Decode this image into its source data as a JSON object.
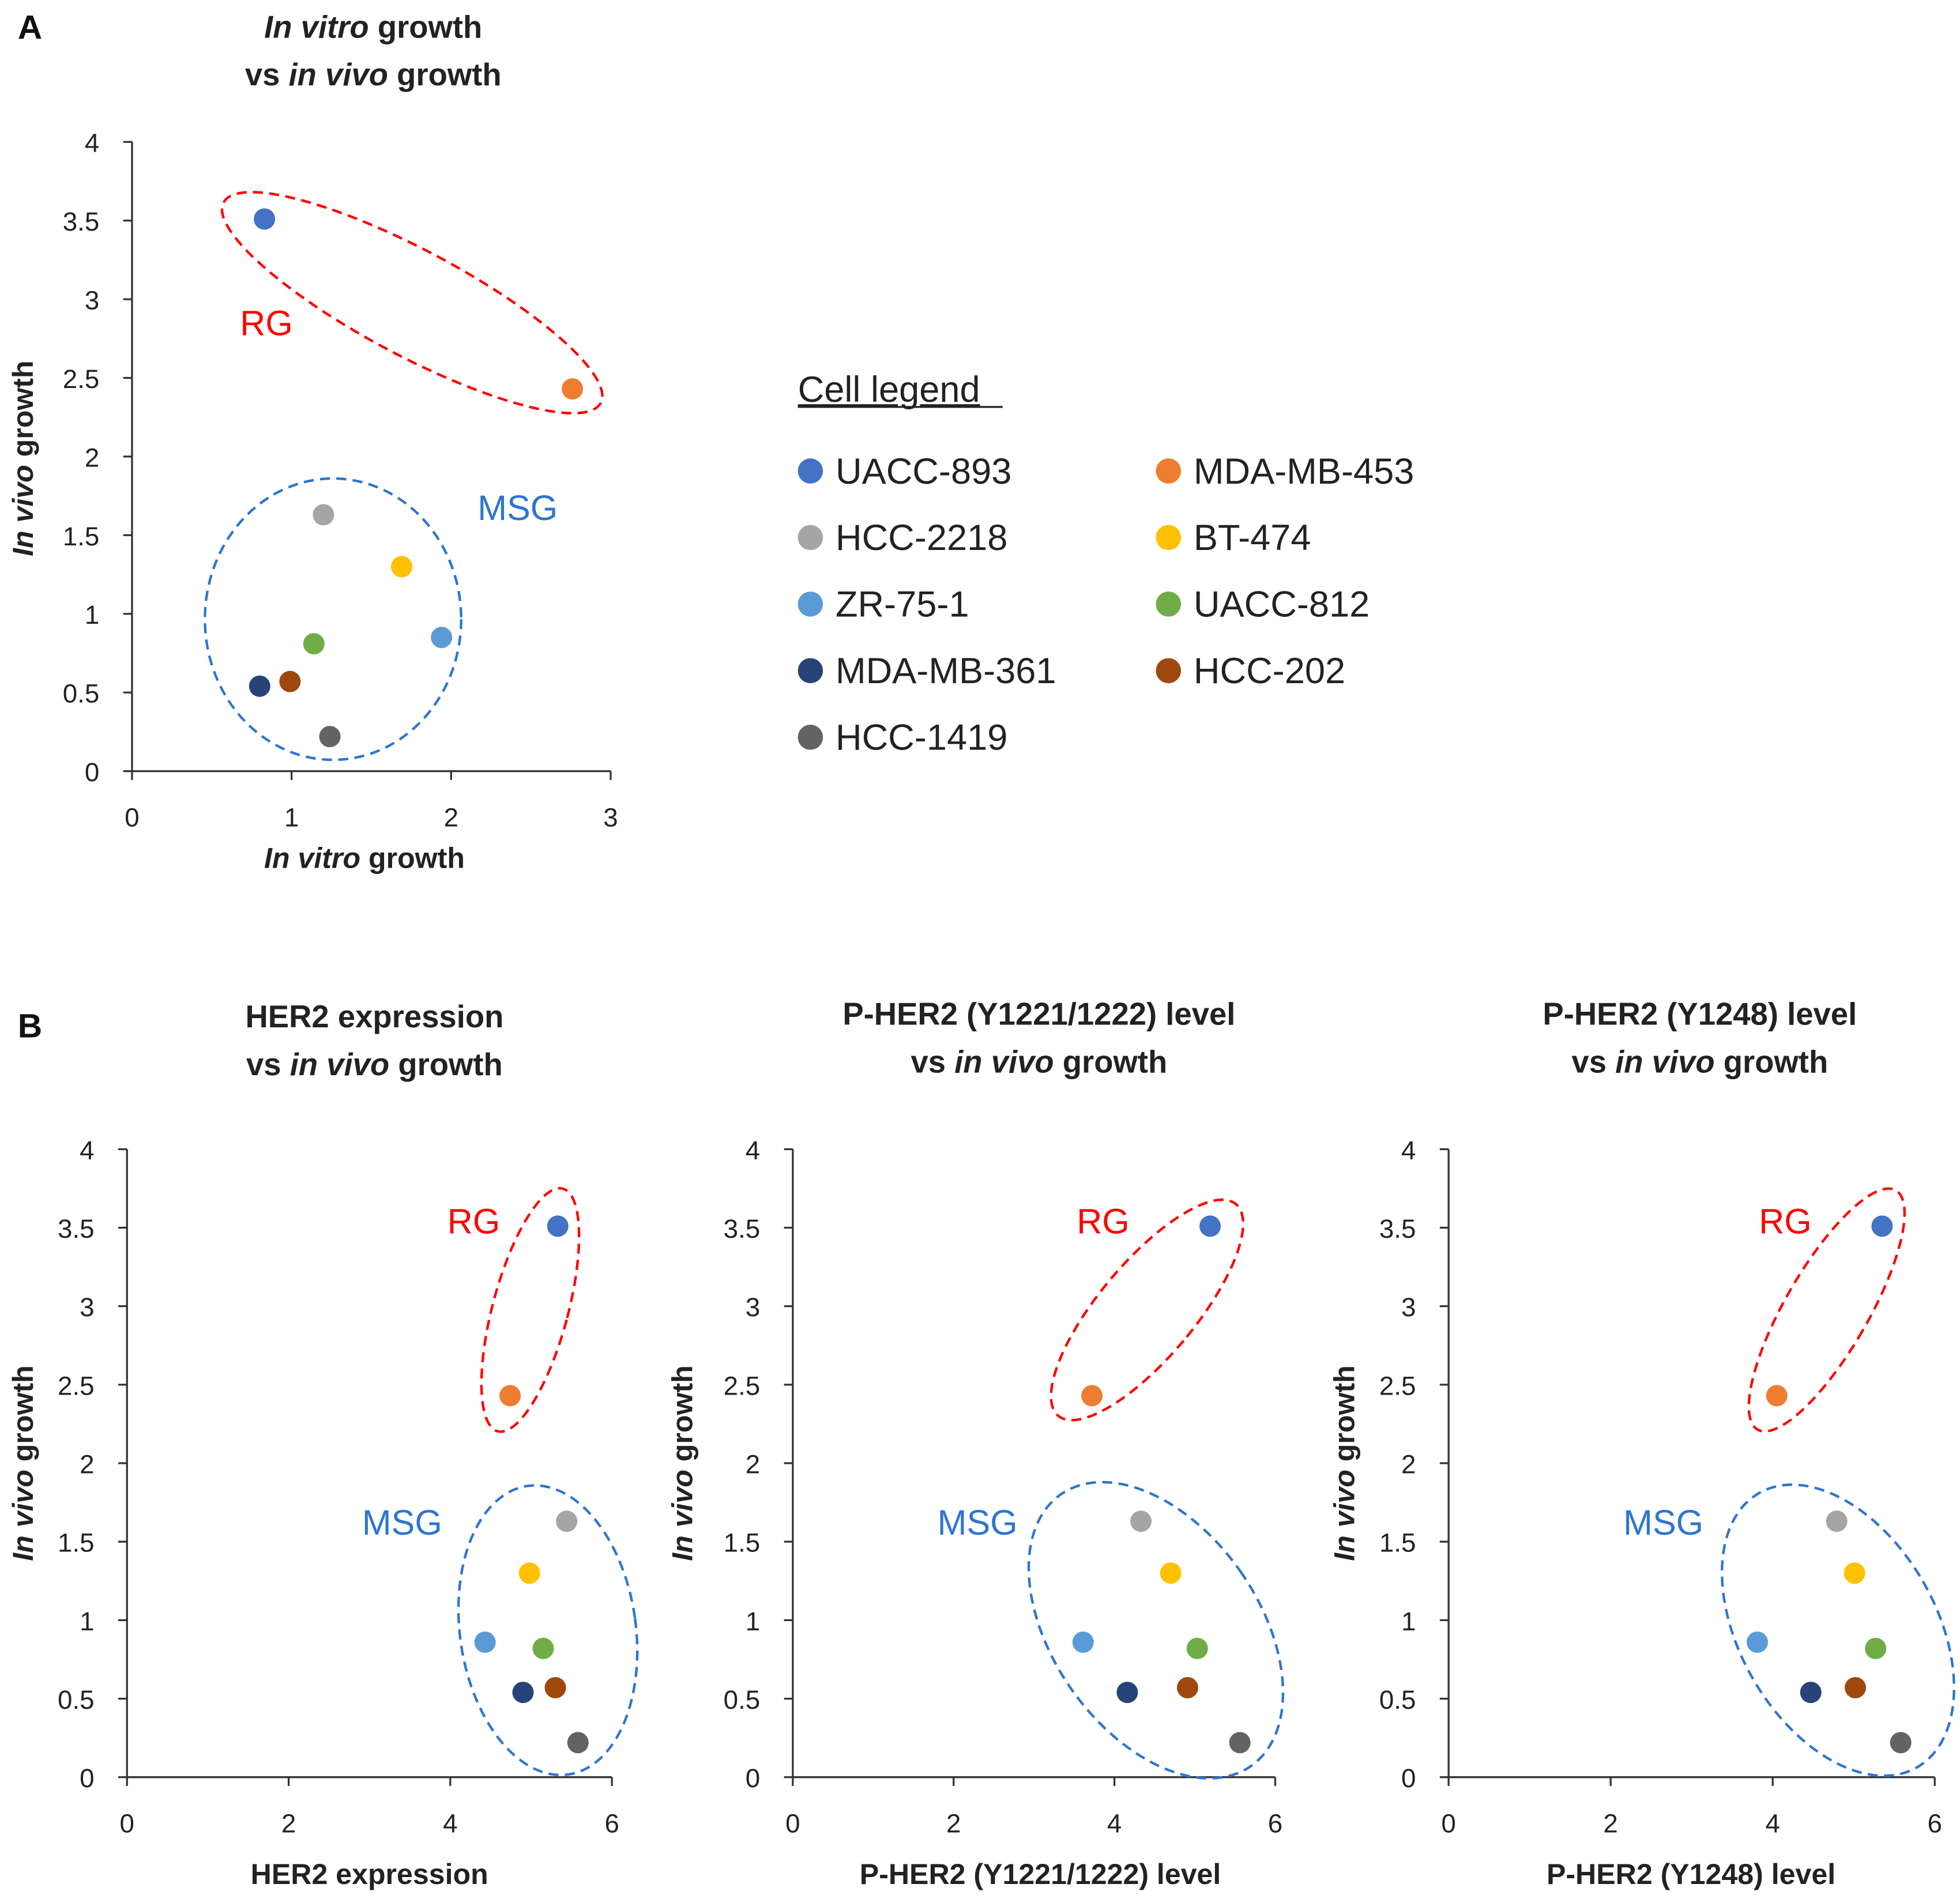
{
  "panel_letters": [
    "A",
    "B"
  ],
  "legend": {
    "title": "Cell legend",
    "items": [
      {
        "name": "UACC-893",
        "color": "#4472C4"
      },
      {
        "name": "MDA-MB-453",
        "color": "#ED7D31"
      },
      {
        "name": "HCC-2218",
        "color": "#A5A5A5"
      },
      {
        "name": "BT-474",
        "color": "#FFC000"
      },
      {
        "name": "ZR-75-1",
        "color": "#5B9BD5"
      },
      {
        "name": "UACC-812",
        "color": "#70AD47"
      },
      {
        "name": "MDA-MB-361",
        "color": "#264478"
      },
      {
        "name": "HCC-202",
        "color": "#9E480E"
      },
      {
        "name": "HCC-1419",
        "color": "#636363"
      }
    ]
  },
  "groups": {
    "rg": {
      "label": "RG",
      "color": "#FF0000"
    },
    "msg": {
      "label": "MSG",
      "color": "#2E75D0"
    }
  },
  "chart_data": [
    {
      "type": "scatter",
      "title": [
        [
          {
            "t": "In vitro",
            "i": true
          },
          {
            "t": " growth"
          }
        ],
        [
          {
            "t": "vs "
          },
          {
            "t": "in vivo",
            "i": true
          },
          {
            "t": " growth"
          }
        ]
      ],
      "xlabel": [
        {
          "t": "In vitro",
          "i": true
        },
        {
          "t": " growth"
        }
      ],
      "ylabel": [
        {
          "t": "In vivo",
          "i": true
        },
        {
          "t": " growth"
        }
      ],
      "xlim": [
        0,
        3
      ],
      "xticks": [
        0,
        1,
        2,
        3
      ],
      "ylim": [
        0,
        4
      ],
      "yticks": [
        "0",
        "0.5",
        "1",
        "1.5",
        "2",
        "2.5",
        "3",
        "3.5",
        "4"
      ],
      "points": [
        [
          0.83,
          3.51
        ],
        [
          2.76,
          2.43
        ],
        [
          1.2,
          1.63
        ],
        [
          1.69,
          1.3
        ],
        [
          1.94,
          0.85
        ],
        [
          1.14,
          0.81
        ],
        [
          0.8,
          0.54
        ],
        [
          0.99,
          0.57
        ],
        [
          1.24,
          0.22
        ]
      ]
    },
    {
      "type": "scatter",
      "title": [
        [
          {
            "t": "HER2 expression"
          }
        ],
        [
          {
            "t": "vs "
          },
          {
            "t": "in vivo",
            "i": true
          },
          {
            "t": " growth"
          }
        ]
      ],
      "xlabel": [
        {
          "t": "HER2 expression"
        }
      ],
      "ylabel": [
        {
          "t": "In vivo",
          "i": true
        },
        {
          "t": " growth"
        }
      ],
      "xlim": [
        0,
        6
      ],
      "xticks": [
        0,
        2,
        4,
        6
      ],
      "ylim": [
        0,
        4
      ],
      "yticks": [
        "0",
        "0.5",
        "1",
        "1.5",
        "2",
        "2.5",
        "3",
        "3.5",
        "4"
      ],
      "points": [
        [
          5.33,
          3.51
        ],
        [
          4.74,
          2.43
        ],
        [
          5.44,
          1.63
        ],
        [
          4.98,
          1.3
        ],
        [
          4.43,
          0.86
        ],
        [
          5.15,
          0.82
        ],
        [
          4.9,
          0.54
        ],
        [
          5.3,
          0.57
        ],
        [
          5.58,
          0.22
        ]
      ]
    },
    {
      "type": "scatter",
      "title": [
        [
          {
            "t": "P-HER2 (Y1221/1222) level"
          }
        ],
        [
          {
            "t": "vs "
          },
          {
            "t": "in vivo",
            "i": true
          },
          {
            "t": " growth"
          }
        ]
      ],
      "xlabel": [
        {
          "t": "P-HER2 (Y1221/1222) level"
        }
      ],
      "ylabel": [
        {
          "t": "In vivo",
          "i": true
        },
        {
          "t": " growth"
        }
      ],
      "xlim": [
        0,
        6
      ],
      "xticks": [
        0,
        2,
        4,
        6
      ],
      "ylim": [
        0,
        4
      ],
      "yticks": [
        "0",
        "0.5",
        "1",
        "1.5",
        "2",
        "2.5",
        "3",
        "3.5",
        "4"
      ],
      "points": [
        [
          5.19,
          3.51
        ],
        [
          3.72,
          2.43
        ],
        [
          4.33,
          1.63
        ],
        [
          4.7,
          1.3
        ],
        [
          3.61,
          0.86
        ],
        [
          5.03,
          0.82
        ],
        [
          4.16,
          0.54
        ],
        [
          4.91,
          0.57
        ],
        [
          5.56,
          0.22
        ]
      ]
    },
    {
      "type": "scatter",
      "title": [
        [
          {
            "t": "P-HER2 (Y1248) level"
          }
        ],
        [
          {
            "t": "vs "
          },
          {
            "t": "in vivo",
            "i": true
          },
          {
            "t": " growth"
          }
        ]
      ],
      "xlabel": [
        {
          "t": "P-HER2 (Y1248) level"
        }
      ],
      "ylabel": [
        {
          "t": "In vivo",
          "i": true
        },
        {
          "t": " growth"
        }
      ],
      "xlim": [
        0,
        6
      ],
      "xticks": [
        0,
        2,
        4,
        6
      ],
      "ylim": [
        0,
        4
      ],
      "yticks": [
        "0",
        "0.5",
        "1",
        "1.5",
        "2",
        "2.5",
        "3",
        "3.5",
        "4"
      ],
      "points": [
        [
          5.35,
          3.51
        ],
        [
          4.05,
          2.43
        ],
        [
          4.79,
          1.63
        ],
        [
          5.01,
          1.3
        ],
        [
          3.81,
          0.86
        ],
        [
          5.27,
          0.82
        ],
        [
          4.47,
          0.54
        ],
        [
          5.02,
          0.57
        ],
        [
          5.58,
          0.22
        ]
      ]
    }
  ]
}
